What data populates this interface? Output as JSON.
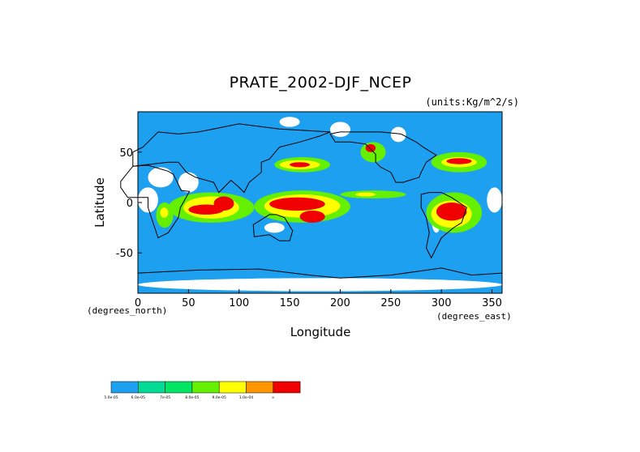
{
  "chart_data": {
    "type": "heatmap",
    "title": "PRATE_2002-DJF_NCEP",
    "units": "(units:Kg/m^2/s)",
    "xlabel": "Longitude",
    "ylabel": "Latitude",
    "x_unit_note": "(degrees_east)",
    "y_unit_note": "(degrees_north)",
    "xlim": [
      0,
      360
    ],
    "ylim": [
      -90,
      90
    ],
    "x_ticks": [
      0,
      50,
      100,
      150,
      200,
      250,
      300,
      350
    ],
    "y_ticks": [
      50,
      0,
      -50
    ],
    "legend": {
      "labels": [
        "5.0e-05",
        "6.0e-05",
        "7e-05",
        "8.0e-05",
        "9.0e-05",
        "1.0e-04",
        "∞"
      ],
      "colors": [
        "#1ea0f0",
        "#00dc96",
        "#00e664",
        "#64f000",
        "#ffff00",
        "#ff9600",
        "#f00000"
      ]
    },
    "background_color": "#1ea0f0",
    "regions": [
      {
        "level": "white",
        "lon": [
          0,
          20
        ],
        "lat": [
          -10,
          15
        ]
      },
      {
        "level": "white",
        "lon": [
          10,
          35
        ],
        "lat": [
          15,
          35
        ]
      },
      {
        "level": "white",
        "lon": [
          40,
          60
        ],
        "lat": [
          10,
          30
        ]
      },
      {
        "level": "white",
        "lon": [
          125,
          145
        ],
        "lat": [
          -30,
          -20
        ]
      },
      {
        "level": "white",
        "lon": [
          290,
          300
        ],
        "lat": [
          -30,
          0
        ]
      },
      {
        "level": "white",
        "lon": [
          0,
          360
        ],
        "lat": [
          -88,
          -75
        ]
      },
      {
        "level": "white",
        "lon": [
          140,
          160
        ],
        "lat": [
          75,
          85
        ]
      },
      {
        "level": "white",
        "lon": [
          190,
          210
        ],
        "lat": [
          65,
          80
        ]
      },
      {
        "level": "white",
        "lon": [
          250,
          265
        ],
        "lat": [
          60,
          75
        ]
      },
      {
        "level": "white",
        "lon": [
          345,
          360
        ],
        "lat": [
          -10,
          15
        ]
      },
      {
        "level": "green",
        "lon": [
          30,
          115
        ],
        "lat": [
          -20,
          10
        ]
      },
      {
        "level": "yellow",
        "lon": [
          45,
          100
        ],
        "lat": [
          -16,
          6
        ]
      },
      {
        "level": "red",
        "lon": [
          50,
          85
        ],
        "lat": [
          -12,
          -2
        ]
      },
      {
        "level": "red",
        "lon": [
          75,
          95
        ],
        "lat": [
          -8,
          6
        ]
      },
      {
        "level": "green",
        "lon": [
          18,
          35
        ],
        "lat": [
          -25,
          0
        ]
      },
      {
        "level": "yellow",
        "lon": [
          22,
          30
        ],
        "lat": [
          -15,
          -5
        ]
      },
      {
        "level": "green",
        "lon": [
          115,
          210
        ],
        "lat": [
          -20,
          12
        ]
      },
      {
        "level": "yellow",
        "lon": [
          125,
          200
        ],
        "lat": [
          -15,
          8
        ]
      },
      {
        "level": "red",
        "lon": [
          130,
          185
        ],
        "lat": [
          -8,
          5
        ]
      },
      {
        "level": "red",
        "lon": [
          160,
          185
        ],
        "lat": [
          -20,
          -8
        ]
      },
      {
        "level": "green",
        "lon": [
          200,
          265
        ],
        "lat": [
          4,
          12
        ]
      },
      {
        "level": "yellow",
        "lon": [
          215,
          235
        ],
        "lat": [
          6,
          10
        ]
      },
      {
        "level": "green",
        "lon": [
          135,
          190
        ],
        "lat": [
          30,
          45
        ]
      },
      {
        "level": "yellow",
        "lon": [
          140,
          180
        ],
        "lat": [
          33,
          42
        ]
      },
      {
        "level": "red",
        "lon": [
          150,
          170
        ],
        "lat": [
          35,
          40
        ]
      },
      {
        "level": "green",
        "lon": [
          285,
          340
        ],
        "lat": [
          -30,
          10
        ]
      },
      {
        "level": "yellow",
        "lon": [
          290,
          330
        ],
        "lat": [
          -25,
          2
        ]
      },
      {
        "level": "red",
        "lon": [
          295,
          325
        ],
        "lat": [
          -18,
          0
        ]
      },
      {
        "level": "green",
        "lon": [
          290,
          345
        ],
        "lat": [
          30,
          50
        ]
      },
      {
        "level": "yellow",
        "lon": [
          300,
          335
        ],
        "lat": [
          35,
          45
        ]
      },
      {
        "level": "red",
        "lon": [
          305,
          330
        ],
        "lat": [
          38,
          44
        ]
      },
      {
        "level": "green",
        "lon": [
          220,
          245
        ],
        "lat": [
          40,
          60
        ]
      },
      {
        "level": "red",
        "lon": [
          225,
          235
        ],
        "lat": [
          50,
          58
        ]
      }
    ]
  }
}
